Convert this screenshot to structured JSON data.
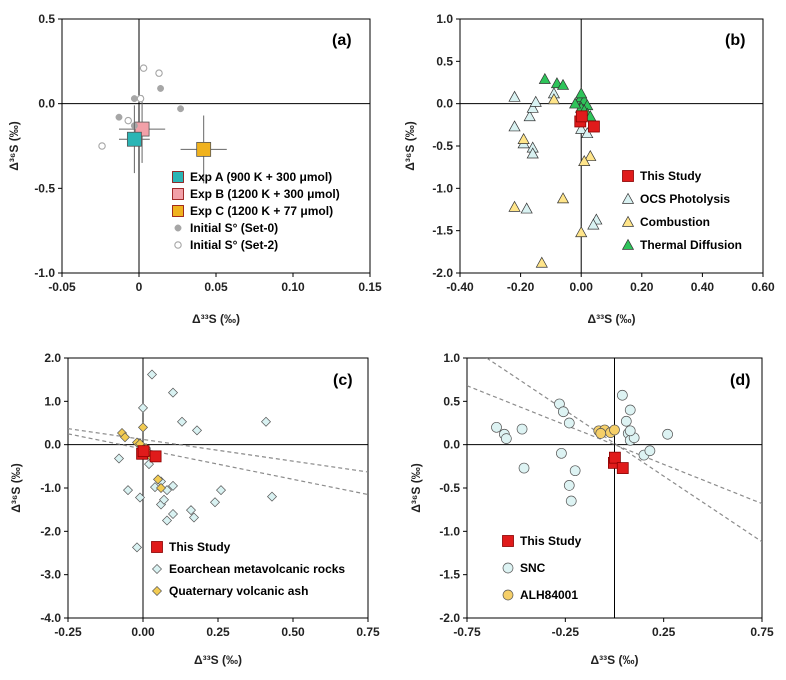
{
  "colors": {
    "this_study": "#e01b1b",
    "exp_a": "#2bb5b5",
    "exp_b": "#f2a0a8",
    "exp_c": "#f0b21e",
    "set0": "#a6a6a6",
    "ocs": "#d9f2f2",
    "combustion": "#ffe58a",
    "thermal": "#2ec45a",
    "eoarchean": "#d9f2f2",
    "quaternary": "#f2cb52",
    "snc": "#ddf3f3",
    "alh": "#f5cf69",
    "dashed": "#8c8c8c"
  },
  "chart_data": [
    {
      "panel": "(a)",
      "type": "scatter",
      "xlabel": "Δ³³S (‰)",
      "ylabel": "Δ³⁶S (‰)",
      "xlim": [
        -0.05,
        0.15
      ],
      "ylim": [
        -1.0,
        0.5
      ],
      "xticks": [
        "-0.05",
        "0",
        "0.05",
        "0.10",
        "0.15"
      ],
      "xtick_values": [
        -0.05,
        0,
        0.05,
        0.1,
        0.15
      ],
      "yticks": [
        "0.5",
        "0.0",
        "-0.5",
        "-1.0"
      ],
      "ytick_values": [
        0.5,
        0.0,
        -0.5,
        -1.0
      ],
      "legend_position": "bottom-right",
      "series": [
        {
          "name": "Exp A (900 K + 300 μmol)",
          "marker": "square-large",
          "color": "#2bb5b5",
          "points": [
            [
              -0.003,
              -0.21
            ]
          ],
          "xerr": [
            0.01
          ],
          "yerr": [
            0.2
          ]
        },
        {
          "name": "Exp B (1200 K + 300 μmol)",
          "marker": "square-large",
          "color": "#f2a0a8",
          "points": [
            [
              0.002,
              -0.15
            ]
          ],
          "xerr": [
            0.015
          ],
          "yerr": [
            0.2
          ]
        },
        {
          "name": "Exp C (1200 K + 77 μmol)",
          "marker": "square-large",
          "color": "#f0b21e",
          "points": [
            [
              0.042,
              -0.27
            ]
          ],
          "xerr": [
            0.015
          ],
          "yerr": [
            0.2
          ]
        },
        {
          "name": "Initial S° (Set-0)",
          "marker": "circle-filled",
          "color": "#a6a6a6",
          "points": [
            [
              -0.003,
              0.03
            ],
            [
              0.014,
              0.09
            ],
            [
              0.027,
              -0.03
            ],
            [
              -0.013,
              -0.08
            ],
            [
              -0.003,
              -0.13
            ]
          ]
        },
        {
          "name": "Initial S° (Set-2)",
          "marker": "circle-open",
          "color": "#a6a6a6",
          "points": [
            [
              0.003,
              0.21
            ],
            [
              0.013,
              0.18
            ],
            [
              -0.024,
              -0.25
            ],
            [
              0.001,
              0.03
            ],
            [
              -0.007,
              -0.1
            ]
          ]
        }
      ]
    },
    {
      "panel": "(b)",
      "type": "scatter",
      "xlabel": "Δ³³S (‰)",
      "ylabel": "Δ³⁶S (‰)",
      "xlim": [
        -0.4,
        0.6
      ],
      "ylim": [
        -2.0,
        1.0
      ],
      "xticks": [
        "-0.40",
        "-0.20",
        "0.00",
        "0.20",
        "0.40",
        "0.60"
      ],
      "xtick_values": [
        -0.4,
        -0.2,
        0.0,
        0.2,
        0.4,
        0.6
      ],
      "yticks": [
        "1.0",
        "0.5",
        "0.0",
        "-0.5",
        "-1.0",
        "-1.5",
        "-2.0"
      ],
      "ytick_values": [
        1.0,
        0.5,
        0.0,
        -0.5,
        -1.0,
        -1.5,
        -2.0
      ],
      "legend_position": "bottom-right",
      "series": [
        {
          "name": "This Study",
          "marker": "square",
          "color": "#e01b1b",
          "points": [
            [
              -0.003,
              -0.21
            ],
            [
              0.002,
              -0.15
            ],
            [
              0.042,
              -0.27
            ]
          ]
        },
        {
          "name": "OCS Photolysis",
          "marker": "triangle",
          "color": "#d9f2f2",
          "points": [
            [
              -0.22,
              0.08
            ],
            [
              -0.17,
              -0.15
            ],
            [
              -0.22,
              -0.27
            ],
            [
              -0.19,
              -0.47
            ],
            [
              -0.16,
              -0.52
            ],
            [
              -0.16,
              -0.59
            ],
            [
              -0.16,
              -0.05
            ],
            [
              -0.09,
              0.12
            ],
            [
              0.0,
              -0.05
            ],
            [
              0.01,
              -0.1
            ],
            [
              0.0,
              -0.3
            ],
            [
              0.02,
              -0.35
            ],
            [
              0.05,
              -1.37
            ],
            [
              0.04,
              -1.43
            ],
            [
              -0.18,
              -1.24
            ],
            [
              -0.15,
              0.02
            ]
          ]
        },
        {
          "name": "Combustion",
          "marker": "triangle",
          "color": "#ffe58a",
          "points": [
            [
              -0.22,
              -1.22
            ],
            [
              -0.13,
              -1.88
            ],
            [
              -0.06,
              -1.12
            ],
            [
              0.0,
              -1.52
            ],
            [
              0.03,
              -0.62
            ],
            [
              0.01,
              -0.68
            ],
            [
              -0.09,
              0.05
            ],
            [
              -0.19,
              -0.42
            ]
          ]
        },
        {
          "name": "Thermal Diffusion",
          "marker": "triangle",
          "color": "#2ec45a",
          "points": [
            [
              -0.12,
              0.29
            ],
            [
              -0.08,
              0.24
            ],
            [
              -0.06,
              0.22
            ],
            [
              -0.01,
              0.02
            ],
            [
              0.0,
              0.08
            ],
            [
              0.01,
              0.04
            ],
            [
              0.02,
              -0.02
            ],
            [
              0.0,
              -0.05
            ],
            [
              -0.02,
              0.0
            ],
            [
              0.01,
              -0.08
            ],
            [
              0.02,
              -0.12
            ],
            [
              0.03,
              -0.15
            ],
            [
              0.0,
              0.12
            ]
          ]
        }
      ]
    },
    {
      "panel": "(c)",
      "type": "scatter",
      "xlabel": "Δ³³S (‰)",
      "ylabel": "Δ³⁶S (‰)",
      "xlim": [
        -0.25,
        0.75
      ],
      "ylim": [
        -4.0,
        2.0
      ],
      "xticks": [
        "-0.25",
        "0.00",
        "0.25",
        "0.50",
        "0.75"
      ],
      "xtick_values": [
        -0.25,
        0.0,
        0.25,
        0.5,
        0.75
      ],
      "yticks": [
        "2.0",
        "1.0",
        "0.0",
        "-1.0",
        "-2.0",
        "-3.0",
        "-4.0"
      ],
      "ytick_values": [
        2.0,
        1.0,
        0.0,
        -1.0,
        -2.0,
        -3.0,
        -4.0
      ],
      "legend_position": "bottom-left",
      "reference_lines": [
        {
          "x": [
            -0.25,
            0.75
          ],
          "y": [
            0.37,
            -0.63
          ]
        },
        {
          "x": [
            -0.25,
            0.75
          ],
          "y": [
            0.25,
            -1.15
          ]
        }
      ],
      "series": [
        {
          "name": "This Study",
          "marker": "square",
          "color": "#e01b1b",
          "points": [
            [
              -0.003,
              -0.21
            ],
            [
              0.002,
              -0.15
            ],
            [
              0.042,
              -0.27
            ]
          ]
        },
        {
          "name": "Eoarchean metavolcanic rocks",
          "marker": "diamond",
          "color": "#d9f2f2",
          "points": [
            [
              0.03,
              1.62
            ],
            [
              0.1,
              1.2
            ],
            [
              0.13,
              0.53
            ],
            [
              0.18,
              0.33
            ],
            [
              0.41,
              0.53
            ],
            [
              0.43,
              -1.2
            ],
            [
              0.26,
              -1.05
            ],
            [
              0.24,
              -1.33
            ],
            [
              0.16,
              -1.51
            ],
            [
              0.17,
              -1.68
            ],
            [
              0.1,
              -1.6
            ],
            [
              0.08,
              -1.75
            ],
            [
              0.06,
              -1.38
            ],
            [
              0.08,
              -1.05
            ],
            [
              0.1,
              -0.95
            ],
            [
              0.06,
              -0.85
            ],
            [
              0.04,
              -0.98
            ],
            [
              0.07,
              -1.27
            ],
            [
              -0.02,
              -2.37
            ],
            [
              -0.05,
              -1.05
            ],
            [
              -0.01,
              -1.22
            ],
            [
              0.0,
              0.85
            ],
            [
              -0.08,
              -0.32
            ],
            [
              0.02,
              -0.45
            ]
          ]
        },
        {
          "name": "Quaternary volcanic ash",
          "marker": "diamond",
          "color": "#f2cb52",
          "points": [
            [
              -0.07,
              0.27
            ],
            [
              -0.06,
              0.17
            ],
            [
              -0.02,
              0.05
            ],
            [
              0.0,
              -0.05
            ],
            [
              0.01,
              -0.12
            ],
            [
              0.02,
              -0.2
            ],
            [
              0.03,
              -0.3
            ],
            [
              0.0,
              0.4
            ],
            [
              0.05,
              -0.8
            ],
            [
              0.06,
              -1.0
            ],
            [
              -0.01,
              0.02
            ],
            [
              0.01,
              -0.08
            ]
          ]
        }
      ]
    },
    {
      "panel": "(d)",
      "type": "scatter",
      "xlabel": "Δ³³S (‰)",
      "ylabel": "Δ³⁶S (‰)",
      "xlim": [
        -0.75,
        0.75
      ],
      "ylim": [
        -2.0,
        1.0
      ],
      "xticks": [
        "-0.75",
        "-0.25",
        "0.25",
        "0.75"
      ],
      "xtick_values": [
        -0.75,
        -0.25,
        0.25,
        0.75
      ],
      "yticks": [
        "1.0",
        "0.5",
        "0.0",
        "-0.5",
        "-1.0",
        "-1.5",
        "-2.0"
      ],
      "ytick_values": [
        1.0,
        0.5,
        0.0,
        -0.5,
        -1.0,
        -1.5,
        -2.0
      ],
      "legend_position": "bottom-left",
      "reference_lines": [
        {
          "x": [
            -0.75,
            0.75
          ],
          "y": [
            0.68,
            -0.68
          ]
        },
        {
          "x": [
            -0.65,
            0.75
          ],
          "y": [
            1.0,
            -1.12
          ]
        }
      ],
      "series": [
        {
          "name": "This Study",
          "marker": "square",
          "color": "#e01b1b",
          "points": [
            [
              -0.003,
              -0.21
            ],
            [
              0.002,
              -0.15
            ],
            [
              0.042,
              -0.27
            ]
          ]
        },
        {
          "name": "SNC",
          "marker": "circle",
          "color": "#ddf3f3",
          "points": [
            [
              -0.6,
              0.2
            ],
            [
              -0.56,
              0.12
            ],
            [
              -0.55,
              0.07
            ],
            [
              -0.47,
              0.18
            ],
            [
              -0.46,
              -0.27
            ],
            [
              -0.28,
              0.47
            ],
            [
              -0.26,
              0.38
            ],
            [
              -0.23,
              0.25
            ],
            [
              -0.27,
              -0.1
            ],
            [
              -0.2,
              -0.3
            ],
            [
              -0.23,
              -0.47
            ],
            [
              -0.22,
              -0.65
            ],
            [
              0.04,
              0.57
            ],
            [
              0.08,
              0.4
            ],
            [
              0.06,
              0.27
            ],
            [
              0.07,
              0.13
            ],
            [
              0.08,
              0.05
            ],
            [
              0.1,
              0.08
            ],
            [
              0.15,
              -0.12
            ],
            [
              0.18,
              -0.07
            ],
            [
              0.27,
              0.12
            ],
            [
              0.08,
              0.16
            ]
          ]
        },
        {
          "name": "ALH84001",
          "marker": "circle",
          "color": "#f5cf69",
          "points": [
            [
              -0.08,
              0.16
            ],
            [
              -0.05,
              0.17
            ],
            [
              -0.02,
              0.14
            ],
            [
              0.0,
              0.17
            ],
            [
              -0.07,
              0.13
            ]
          ]
        }
      ]
    }
  ]
}
